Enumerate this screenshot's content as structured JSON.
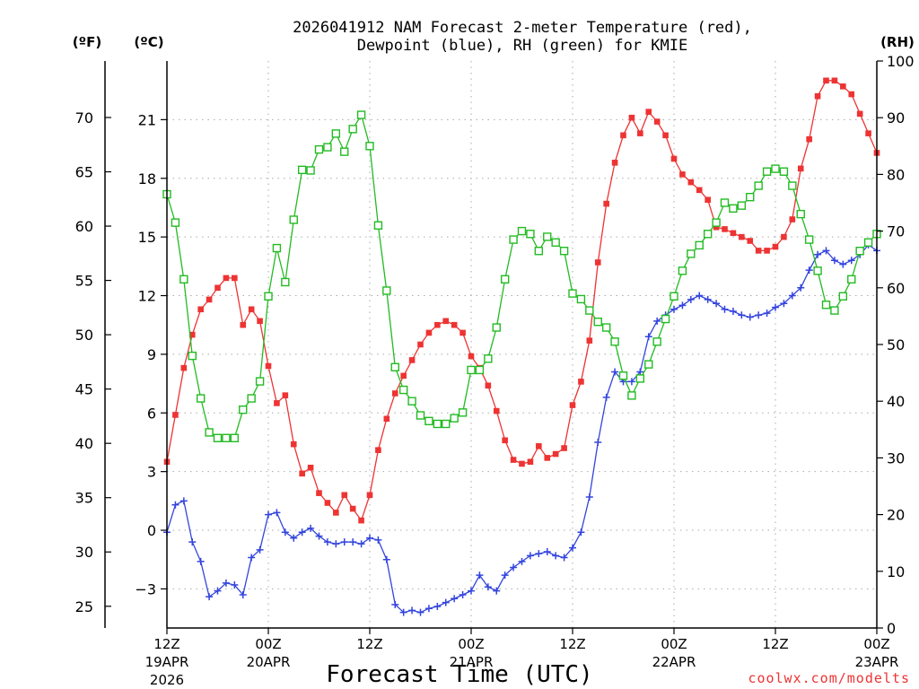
{
  "chart_data": {
    "type": "line",
    "title_line1": "2026041912 NAM Forecast 2-meter Temperature (red),",
    "title_line2": "Dewpoint (blue), RH (green) for KMIE",
    "xlabel": "Forecast Time (UTC)",
    "watermark": "coolwx.com/modelts",
    "left_f_label": "(ºF)",
    "left_c_label": "(ºC)",
    "right_label": "(RH)",
    "x_unit": "forecast hour",
    "xlim": [
      0,
      84
    ],
    "c_lim": [
      -5,
      24
    ],
    "rh_lim": [
      0,
      100
    ],
    "grid": "dotted",
    "x_ticks": [
      {
        "x": 0,
        "line1": "12Z",
        "line2": "19APR",
        "line3": "2026"
      },
      {
        "x": 12,
        "line1": "00Z",
        "line2": "20APR",
        "line3": ""
      },
      {
        "x": 24,
        "line1": "12Z",
        "line2": "",
        "line3": ""
      },
      {
        "x": 36,
        "line1": "00Z",
        "line2": "21APR",
        "line3": ""
      },
      {
        "x": 48,
        "line1": "12Z",
        "line2": "",
        "line3": ""
      },
      {
        "x": 60,
        "line1": "00Z",
        "line2": "22APR",
        "line3": ""
      },
      {
        "x": 72,
        "line1": "12Z",
        "line2": "",
        "line3": ""
      },
      {
        "x": 84,
        "line1": "00Z",
        "line2": "23APR",
        "line3": ""
      }
    ],
    "c_ticks": [
      "-3",
      "0",
      "3",
      "6",
      "9",
      "12",
      "15",
      "18",
      "21"
    ],
    "f_ticks": [
      "25",
      "30",
      "35",
      "40",
      "45",
      "50",
      "55",
      "60",
      "65",
      "70"
    ],
    "rh_ticks": [
      "0",
      "10",
      "20",
      "30",
      "40",
      "50",
      "60",
      "70",
      "80",
      "90",
      "100"
    ],
    "series": [
      {
        "name": "Temperature",
        "color": "#ee3333",
        "marker": "filled-square",
        "axis": "celsius",
        "x": [
          0,
          1,
          2,
          3,
          4,
          5,
          6,
          7,
          8,
          9,
          10,
          11,
          12,
          13,
          14,
          15,
          16,
          17,
          18,
          19,
          20,
          21,
          22,
          23,
          24,
          25,
          26,
          27,
          28,
          29,
          30,
          31,
          32,
          33,
          34,
          35,
          36,
          37,
          38,
          39,
          40,
          41,
          42,
          43,
          44,
          45,
          46,
          47,
          48,
          49,
          50,
          51,
          52,
          53,
          54,
          55,
          56,
          57,
          58,
          59,
          60,
          61,
          62,
          63,
          64,
          65,
          66,
          67,
          68,
          69,
          70,
          71,
          72,
          73,
          74,
          75,
          76,
          77,
          78,
          79,
          80,
          81,
          82,
          83,
          84
        ],
        "values": [
          3.5,
          5.9,
          8.3,
          10.0,
          11.3,
          11.8,
          12.4,
          12.9,
          12.9,
          10.5,
          11.3,
          10.7,
          8.4,
          6.5,
          6.9,
          4.4,
          2.9,
          3.2,
          1.9,
          1.4,
          0.9,
          1.8,
          1.1,
          0.5,
          1.8,
          4.1,
          5.7,
          7.0,
          7.9,
          8.7,
          9.5,
          10.1,
          10.5,
          10.7,
          10.5,
          10.1,
          8.9,
          8.3,
          7.4,
          6.1,
          4.6,
          3.6,
          3.4,
          3.5,
          4.3,
          3.7,
          3.9,
          4.2,
          6.4,
          7.6,
          9.7,
          13.7,
          16.7,
          18.8,
          20.2,
          21.1,
          20.3,
          21.4,
          20.9,
          20.2,
          19.0,
          18.2,
          17.8,
          17.4,
          16.9,
          15.5,
          15.4,
          15.2,
          15.0,
          14.8,
          14.3,
          14.3,
          14.5,
          15.0,
          15.9,
          18.5,
          20.0,
          22.2,
          23.0,
          23.0,
          22.7,
          22.3,
          21.3,
          20.3,
          19.3
        ]
      },
      {
        "name": "Dewpoint",
        "color": "#3344dd",
        "marker": "plus",
        "axis": "celsius",
        "x": [
          0,
          1,
          2,
          3,
          4,
          5,
          6,
          7,
          8,
          9,
          10,
          11,
          12,
          13,
          14,
          15,
          16,
          17,
          18,
          19,
          20,
          21,
          22,
          23,
          24,
          25,
          26,
          27,
          28,
          29,
          30,
          31,
          32,
          33,
          34,
          35,
          36,
          37,
          38,
          39,
          40,
          41,
          42,
          43,
          44,
          45,
          46,
          47,
          48,
          49,
          50,
          51,
          52,
          53,
          54,
          55,
          56,
          57,
          58,
          59,
          60,
          61,
          62,
          63,
          64,
          65,
          66,
          67,
          68,
          69,
          70,
          71,
          72,
          73,
          74,
          75,
          76,
          77,
          78,
          79,
          80,
          81,
          82,
          83,
          84
        ],
        "values": [
          -0.1,
          1.3,
          1.5,
          -0.6,
          -1.6,
          -3.4,
          -3.1,
          -2.7,
          -2.8,
          -3.3,
          -1.4,
          -1.0,
          0.8,
          0.9,
          -0.1,
          -0.4,
          -0.1,
          0.1,
          -0.3,
          -0.6,
          -0.7,
          -0.6,
          -0.6,
          -0.7,
          -0.4,
          -0.5,
          -1.5,
          -3.8,
          -4.2,
          -4.1,
          -4.2,
          -4.0,
          -3.9,
          -3.7,
          -3.5,
          -3.3,
          -3.1,
          -2.3,
          -2.9,
          -3.1,
          -2.3,
          -1.9,
          -1.6,
          -1.3,
          -1.2,
          -1.1,
          -1.3,
          -1.4,
          -0.9,
          -0.1,
          1.7,
          4.5,
          6.8,
          8.1,
          7.6,
          7.6,
          8.1,
          9.9,
          10.7,
          11.0,
          11.3,
          11.5,
          11.8,
          12.0,
          11.8,
          11.6,
          11.3,
          11.2,
          11.0,
          10.9,
          11.0,
          11.1,
          11.4,
          11.6,
          12.0,
          12.4,
          13.3,
          14.1,
          14.3,
          13.8,
          13.6,
          13.8,
          14.1,
          14.6,
          14.3
        ]
      },
      {
        "name": "RH",
        "color": "#22bb22",
        "marker": "open-square",
        "axis": "rh",
        "x": [
          0,
          1,
          2,
          3,
          4,
          5,
          6,
          7,
          8,
          9,
          10,
          11,
          12,
          13,
          14,
          15,
          16,
          17,
          18,
          19,
          20,
          21,
          22,
          23,
          24,
          25,
          26,
          27,
          28,
          29,
          30,
          31,
          32,
          33,
          34,
          35,
          36,
          37,
          38,
          39,
          40,
          41,
          42,
          43,
          44,
          45,
          46,
          47,
          48,
          49,
          50,
          51,
          52,
          53,
          54,
          55,
          56,
          57,
          58,
          59,
          60,
          61,
          62,
          63,
          64,
          65,
          66,
          67,
          68,
          69,
          70,
          71,
          72,
          73,
          74,
          75,
          76,
          77,
          78,
          79,
          80,
          81,
          82,
          83,
          84
        ],
        "values": [
          76.5,
          71.5,
          61.5,
          48.0,
          40.5,
          34.5,
          33.5,
          33.5,
          33.5,
          38.5,
          40.5,
          43.5,
          58.5,
          67.0,
          61.0,
          72.0,
          80.8,
          80.7,
          84.4,
          84.8,
          87.2,
          84.0,
          88.0,
          90.5,
          85.0,
          71.0,
          59.5,
          46.0,
          42.0,
          40.0,
          37.5,
          36.5,
          36.0,
          36.0,
          37.0,
          38.0,
          45.5,
          45.5,
          47.5,
          53.0,
          61.5,
          68.5,
          70.0,
          69.5,
          66.5,
          69.0,
          68.0,
          66.5,
          59.0,
          58.0,
          56.0,
          54.0,
          53.0,
          50.5,
          44.5,
          41.0,
          44.0,
          46.5,
          50.5,
          54.5,
          58.5,
          63.0,
          66.0,
          67.5,
          69.5,
          71.5,
          75.0,
          74.0,
          74.5,
          76.0,
          78.0,
          80.5,
          81.0,
          80.5,
          78.0,
          73.0,
          68.5,
          63.0,
          57.0,
          56.0,
          58.5,
          61.5,
          66.5,
          68.0,
          69.5
        ]
      }
    ]
  }
}
